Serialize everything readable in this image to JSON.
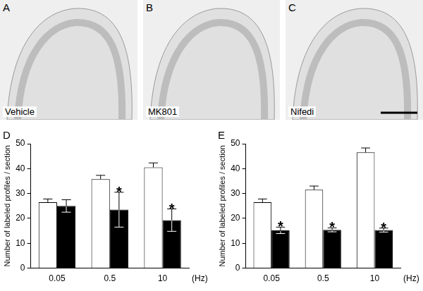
{
  "images": [
    {
      "label": "A",
      "caption": "Vehicle"
    },
    {
      "label": "B",
      "caption": "MK801"
    },
    {
      "label": "C",
      "caption": "Nifedi"
    }
  ],
  "chart_data": [
    {
      "type": "bar",
      "title": "D",
      "categories": [
        "0.05",
        "0.5",
        "10"
      ],
      "x_label": "(Hz)",
      "y_label": "Number of labeled profiles / section",
      "series": [
        {
          "color": "#ffffff",
          "values": [
            26.5,
            35.8,
            40.5
          ],
          "errors": [
            1.3,
            1.5,
            1.8
          ]
        },
        {
          "color": "#000000",
          "values": [
            25.0,
            23.5,
            19.3
          ],
          "errors": [
            2.5,
            7.0,
            4.5
          ]
        }
      ],
      "annotations": [
        {
          "text": "*",
          "category": "0.5",
          "series": 1
        },
        {
          "text": "*",
          "category": "10",
          "series": 1
        }
      ],
      "ylim": [
        0,
        50
      ],
      "yticks": [
        0,
        10,
        20,
        30,
        40,
        50
      ],
      "grid": false
    },
    {
      "type": "bar",
      "title": "E",
      "categories": [
        "0.05",
        "0.5",
        "10"
      ],
      "x_label": "(Hz)",
      "y_label": "Number of labeled profiles / section",
      "series": [
        {
          "color": "#ffffff",
          "values": [
            26.5,
            31.5,
            46.5
          ],
          "errors": [
            1.3,
            1.5,
            1.8
          ]
        },
        {
          "color": "#000000",
          "values": [
            15.2,
            15.4,
            15.3
          ],
          "errors": [
            1.3,
            0.8,
            0.8
          ]
        }
      ],
      "annotations": [
        {
          "text": "*",
          "category": "0.05",
          "series": 1
        },
        {
          "text": "*",
          "category": "0.5",
          "series": 1
        },
        {
          "text": "*",
          "category": "10",
          "series": 1
        }
      ],
      "ylim": [
        0,
        50
      ],
      "yticks": [
        0,
        10,
        20,
        30,
        40,
        50
      ],
      "grid": false
    }
  ]
}
